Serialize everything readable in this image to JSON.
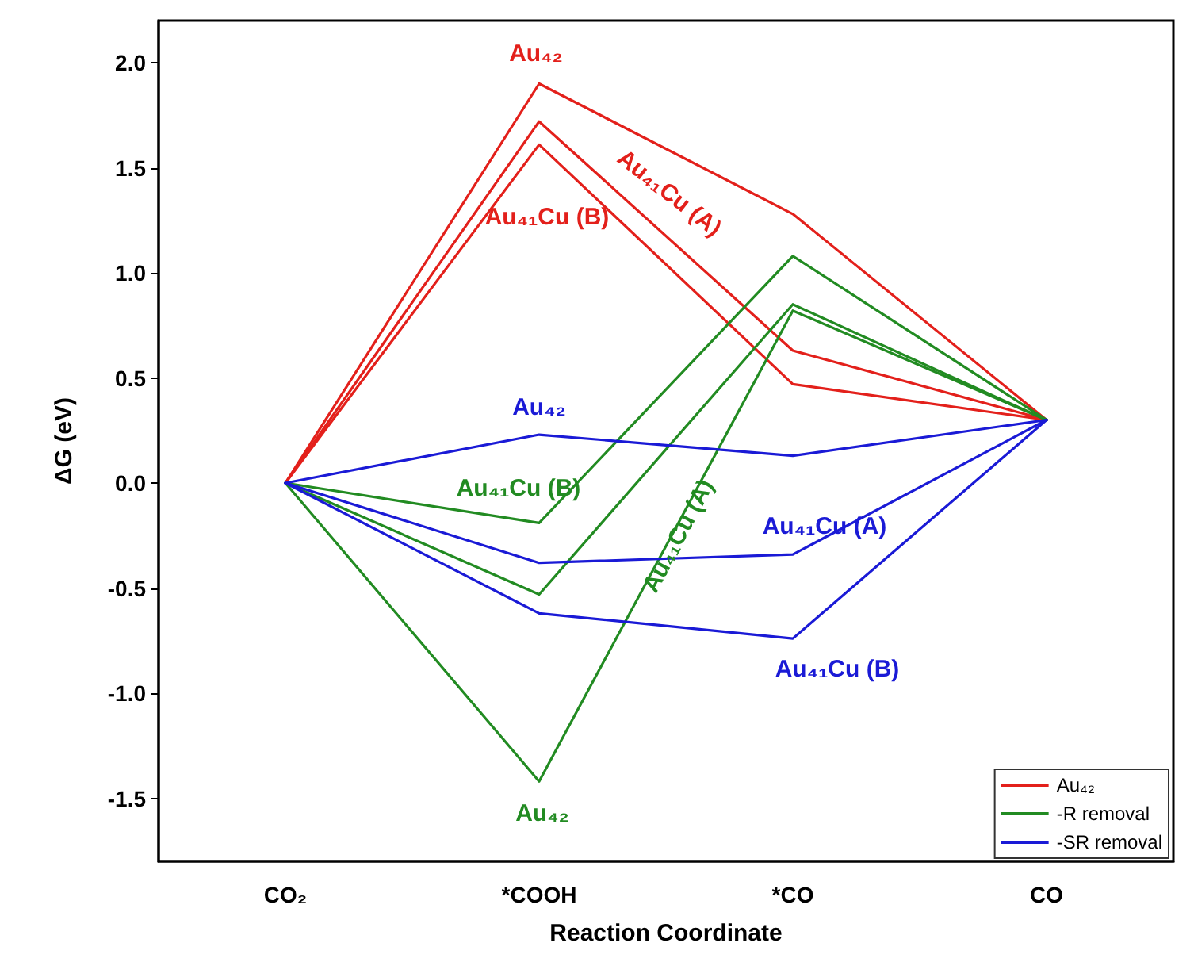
{
  "chart_data": {
    "type": "line",
    "xlabel": "Reaction Coordinate",
    "ylabel": "ΔG (eV)",
    "categories": [
      "CO₂",
      "*COOH",
      "*CO",
      "CO"
    ],
    "ylim": [
      -1.8,
      2.2
    ],
    "yticks": [
      -1.5,
      {
        "value": -1,
        "label": "-1.0"
      },
      -0.5,
      {
        "value": 0,
        "label": "0.0"
      },
      0.5,
      {
        "value": 1,
        "label": "1.0"
      },
      1.5,
      {
        "value": 2,
        "label": "2.0"
      }
    ],
    "legend": "bottom right",
    "series": [
      {
        "name": "Au₄₂",
        "color": "#e3201b",
        "values": [
          0,
          1.9,
          1.28,
          0.3
        ]
      },
      {
        "color": "#e3201b",
        "values": [
          0,
          1.72,
          0.63,
          0.3
        ]
      },
      {
        "color": "#e3201b",
        "values": [
          0,
          1.61,
          0.47,
          0.3
        ]
      },
      {
        "name": "-R removal",
        "color": "#228b22",
        "values": [
          0,
          -0.19,
          1.08,
          0.3
        ]
      },
      {
        "color": "#228b22",
        "values": [
          0,
          -0.53,
          0.85,
          0.3
        ]
      },
      {
        "color": "#228b22",
        "values": [
          0,
          -1.42,
          0.82,
          0.3
        ]
      },
      {
        "name": "-SR removal",
        "color": "#1a1ad6",
        "values": [
          0,
          0.23,
          0.13,
          0.3
        ]
      },
      {
        "color": "#1a1ad6",
        "values": [
          0,
          -0.38,
          -0.34,
          0.3
        ]
      },
      {
        "color": "#1a1ad6",
        "values": [
          0,
          -0.62,
          -0.74,
          0.3
        ]
      }
    ],
    "annotations": [
      "Au₄₂",
      "Au₄₁Cu (A)",
      "Au₄₁Cu (B)",
      "Au₄₂",
      "Au₄₁Cu (B)",
      "Au₄₁Cu (A)",
      "Au₄₂",
      "Au₄₁Cu (A)",
      "Au₄₁Cu (B)"
    ]
  }
}
